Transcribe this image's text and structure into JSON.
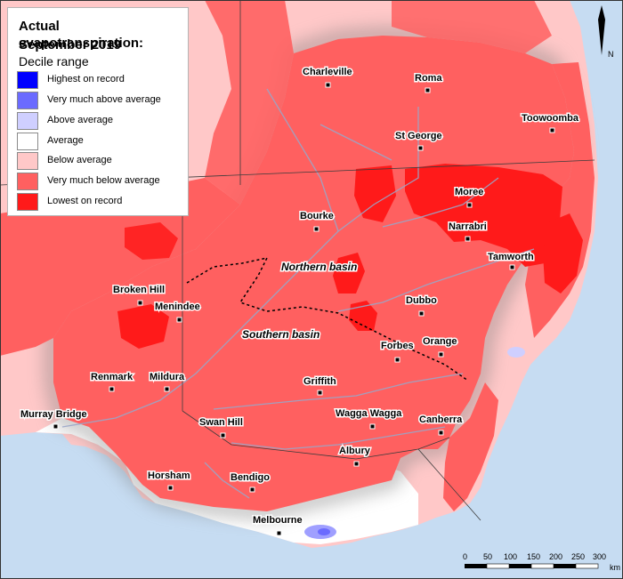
{
  "legend": {
    "title_line1": "Actual evapotranspiration:",
    "title_line2": "September 2019",
    "subtitle": "Decile range",
    "items": [
      {
        "label": "Highest on record",
        "color": "#0000ff"
      },
      {
        "label": "Very much above average",
        "color": "#6b6bff"
      },
      {
        "label": "Above average",
        "color": "#cfcfff"
      },
      {
        "label": "Average",
        "color": "#ffffff"
      },
      {
        "label": "Below average",
        "color": "#ffc8c8"
      },
      {
        "label": "Very much below average",
        "color": "#ff6060"
      },
      {
        "label": "Lowest on record",
        "color": "#ff1a1a"
      }
    ]
  },
  "places": {
    "charleville": "Charleville",
    "roma": "Roma",
    "toowoomba": "Toowoomba",
    "st_george": "St George",
    "moree": "Moree",
    "narrabri": "Narrabri",
    "bourke": "Bourke",
    "tamworth": "Tamworth",
    "broken_hill": "Broken Hill",
    "menindee": "Menindee",
    "dubbo": "Dubbo",
    "forbes": "Forbes",
    "orange": "Orange",
    "renmark": "Renmark",
    "mildura": "Mildura",
    "griffith": "Griffith",
    "murray_bridge": "Murray Bridge",
    "wagga_wagga": "Wagga Wagga",
    "canberra": "Canberra",
    "swan_hill": "Swan Hill",
    "albury": "Albury",
    "horsham": "Horsham",
    "bendigo": "Bendigo",
    "melbourne": "Melbourne"
  },
  "basins": {
    "northern": "Northern basin",
    "southern": "Southern basin"
  },
  "scale_bar": {
    "ticks": [
      "0",
      "50",
      "100",
      "150",
      "200",
      "250",
      "300"
    ],
    "unit": "km"
  },
  "north_arrow": "N",
  "colors": {
    "ocean": "#c6dcf2",
    "very_much_below": "#ff6060",
    "lowest": "#ff1a1a",
    "below": "#ffc8c8",
    "average": "#ffffff",
    "river": "#9aa6c8"
  }
}
